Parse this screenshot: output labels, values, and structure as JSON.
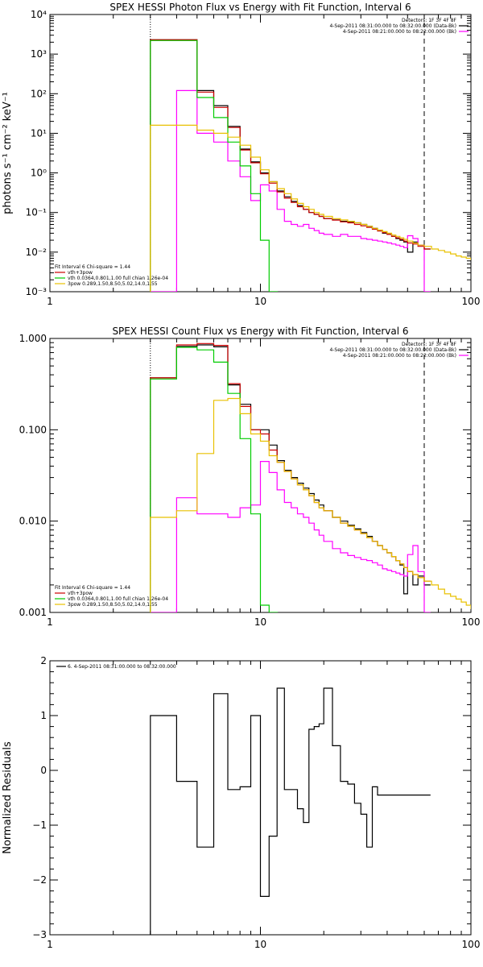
{
  "chart_data": [
    {
      "type": "line",
      "title": "SPEX HESSI Photon Flux vs Energy with Fit Function, Interval 6",
      "xlabel": "",
      "ylabel": "photons s⁻¹ cm⁻² keV⁻¹",
      "x_scale": "log",
      "y_scale": "log",
      "xlim": [
        1,
        100
      ],
      "ylim": [
        0.001,
        10000
      ],
      "x_ticks": [
        {
          "v": 1,
          "label": "1"
        },
        {
          "v": 10,
          "label": "10"
        },
        {
          "v": 100,
          "label": "100"
        }
      ],
      "y_ticks": [
        {
          "v": 0.001,
          "label": "10⁻³"
        },
        {
          "v": 0.01,
          "label": "10⁻²"
        },
        {
          "v": 0.1,
          "label": "10⁻¹"
        },
        {
          "v": 1,
          "label": "10⁰"
        },
        {
          "v": 10,
          "label": "10¹"
        },
        {
          "v": 100,
          "label": "10²"
        },
        {
          "v": 1000,
          "label": "10³"
        },
        {
          "v": 10000,
          "label": "10⁴"
        }
      ],
      "vlines": [
        {
          "x": 3,
          "style": "dotted"
        },
        {
          "x": 60,
          "style": "dashed"
        }
      ],
      "legend_top": [
        "Detectors: 1F 3F 4F 8F",
        "4-Sep-2011 08:31:00.000 to 08:32:00.000 (Data-Bk)",
        "4-Sep-2011 08:21:00.000 to 08:22:00.000 (Bk)"
      ],
      "legend_top_colors": [
        "",
        "#000000",
        "#ff00ff"
      ],
      "legend_bottom": [
        "Fit Interval 6   Chi-square = 1.44",
        "vth+3pow",
        "vth 0.0364,0.801,1.00  full chian 1.26e-04",
        "3pow 0.289,1.50,8.50,5.02,14.0,1.55"
      ],
      "legend_bottom_colors": [
        "",
        "#cc0000",
        "#00cc00",
        "#e8c000"
      ],
      "series": [
        {
          "name": "data-bk",
          "color": "#000000",
          "x": [
            3,
            4,
            5,
            6,
            7,
            8,
            9,
            10,
            11,
            12,
            13,
            14,
            15,
            16,
            17,
            18,
            19,
            20,
            22,
            24,
            26,
            28,
            30,
            32,
            34,
            36,
            38,
            40,
            42,
            44,
            46,
            48,
            50,
            53,
            56,
            60
          ],
          "y": [
            2300,
            2300,
            120,
            50,
            15,
            4,
            1.9,
            1,
            0.6,
            0.35,
            0.25,
            0.19,
            0.15,
            0.12,
            0.1,
            0.09,
            0.08,
            0.07,
            0.065,
            0.06,
            0.058,
            0.055,
            0.05,
            0.045,
            0.04,
            0.035,
            0.03,
            0.028,
            0.025,
            0.022,
            0.02,
            0.018,
            0.01,
            0.018,
            0.015,
            0.012
          ]
        },
        {
          "name": "background",
          "color": "#ff00ff",
          "x": [
            3,
            4,
            5,
            6,
            7,
            8,
            9,
            10,
            11,
            12,
            13,
            14,
            15,
            16,
            17,
            18,
            19,
            20,
            22,
            24,
            26,
            28,
            30,
            32,
            34,
            36,
            38,
            40,
            42,
            44,
            46,
            48,
            50,
            53,
            56,
            60
          ],
          "y": [
            0.001,
            120,
            10,
            6,
            2,
            0.8,
            0.2,
            0.5,
            0.35,
            0.12,
            0.06,
            0.05,
            0.045,
            0.05,
            0.04,
            0.035,
            0.03,
            0.028,
            0.025,
            0.028,
            0.025,
            0.025,
            0.022,
            0.021,
            0.02,
            0.019,
            0.018,
            0.017,
            0.016,
            0.015,
            0.014,
            0.013,
            0.026,
            0.022,
            0.015,
            0.001
          ]
        },
        {
          "name": "total fit",
          "color": "#cc0000",
          "x": [
            3,
            4,
            5,
            6,
            7,
            8,
            9,
            10,
            11,
            12,
            13,
            14,
            15,
            16,
            17,
            18,
            19,
            20,
            22,
            24,
            26,
            28,
            30,
            32,
            34,
            36,
            38,
            40,
            42,
            44,
            46,
            48,
            50,
            53,
            56,
            60
          ],
          "y": [
            2300,
            2300,
            110,
            45,
            14,
            3.8,
            1.8,
            0.95,
            0.55,
            0.33,
            0.23,
            0.18,
            0.14,
            0.12,
            0.1,
            0.09,
            0.08,
            0.07,
            0.064,
            0.058,
            0.055,
            0.05,
            0.046,
            0.042,
            0.038,
            0.034,
            0.031,
            0.028,
            0.025,
            0.023,
            0.021,
            0.019,
            0.017,
            0.016,
            0.014,
            0.012
          ]
        },
        {
          "name": "vth",
          "color": "#00cc00",
          "x": [
            3,
            4,
            5,
            6,
            7,
            8,
            9,
            10,
            11
          ],
          "y": [
            2200,
            2200,
            80,
            25,
            6,
            1.5,
            0.3,
            0.02,
            0.001
          ]
        },
        {
          "name": "3pow",
          "color": "#e8c000",
          "x": [
            3,
            4,
            5,
            6,
            7,
            8,
            9,
            10,
            11,
            12,
            13,
            14,
            15,
            16,
            17,
            18,
            19,
            20,
            22,
            24,
            26,
            28,
            30,
            32,
            34,
            36,
            38,
            40,
            42,
            44,
            46,
            48,
            50,
            53,
            56,
            60,
            65,
            70,
            75,
            80,
            85,
            90,
            95,
            100
          ],
          "y": [
            16,
            16,
            12,
            10,
            8,
            5,
            2.5,
            1.2,
            0.6,
            0.4,
            0.3,
            0.22,
            0.17,
            0.14,
            0.12,
            0.1,
            0.09,
            0.08,
            0.07,
            0.065,
            0.06,
            0.055,
            0.05,
            0.045,
            0.04,
            0.036,
            0.033,
            0.03,
            0.027,
            0.025,
            0.023,
            0.021,
            0.019,
            0.017,
            0.015,
            0.014,
            0.012,
            0.011,
            0.01,
            0.009,
            0.008,
            0.0075,
            0.007,
            0.0065
          ]
        }
      ]
    },
    {
      "type": "line",
      "title": "SPEX HESSI Count Flux vs Energy with Fit Function, Interval 6",
      "xlabel": "",
      "ylabel": "",
      "x_scale": "log",
      "y_scale": "log",
      "xlim": [
        1,
        100
      ],
      "ylim": [
        0.001,
        1
      ],
      "x_ticks": [
        {
          "v": 1,
          "label": "1"
        },
        {
          "v": 10,
          "label": "10"
        },
        {
          "v": 100,
          "label": "100"
        }
      ],
      "y_ticks": [
        {
          "v": 0.001,
          "label": "0.001"
        },
        {
          "v": 0.01,
          "label": "0.010"
        },
        {
          "v": 0.1,
          "label": "0.100"
        },
        {
          "v": 1,
          "label": "1.000"
        }
      ],
      "vlines": [
        {
          "x": 3,
          "style": "dotted"
        },
        {
          "x": 60,
          "style": "dashed"
        }
      ],
      "legend_top": [
        "Detectors: 1F 3F 4F 8F",
        "4-Sep-2011 08:31:00.000 to 08:32:00.000 (Data-Bk)",
        "4-Sep-2011 08:21:00.000 to 08:22:00.000 (Bk)"
      ],
      "legend_top_colors": [
        "",
        "#000000",
        "#ff00ff"
      ],
      "legend_bottom": [
        "Fit Interval 6   Chi-square = 1.44",
        "vth+3pow",
        "vth 0.0364,0.801,1.00  full chian 1.26e-04",
        "3pow 0.289,1.50,8.50,5.02,14.0,1.55"
      ],
      "legend_bottom_colors": [
        "",
        "#cc0000",
        "#00cc00",
        "#e8c000"
      ],
      "series": [
        {
          "name": "data-bk",
          "color": "#000000",
          "x": [
            3,
            4,
            5,
            6,
            7,
            8,
            9,
            10,
            11,
            12,
            13,
            14,
            15,
            16,
            17,
            18,
            19,
            20,
            22,
            24,
            26,
            28,
            30,
            32,
            34,
            36,
            38,
            40,
            42,
            44,
            46,
            48,
            50,
            53,
            56,
            60
          ],
          "y": [
            0.37,
            0.82,
            0.85,
            0.81,
            0.31,
            0.19,
            0.1,
            0.1,
            0.068,
            0.046,
            0.036,
            0.03,
            0.026,
            0.023,
            0.02,
            0.017,
            0.015,
            0.013,
            0.011,
            0.01,
            0.009,
            0.0082,
            0.0075,
            0.0068,
            0.006,
            0.0054,
            0.0049,
            0.0045,
            0.0041,
            0.0037,
            0.0033,
            0.0016,
            0.0028,
            0.002,
            0.0025,
            0.002
          ]
        },
        {
          "name": "background",
          "color": "#ff00ff",
          "x": [
            3,
            4,
            5,
            6,
            7,
            8,
            9,
            10,
            11,
            12,
            13,
            14,
            15,
            16,
            17,
            18,
            19,
            20,
            22,
            24,
            26,
            28,
            30,
            32,
            34,
            36,
            38,
            40,
            42,
            44,
            46,
            48,
            50,
            53,
            56,
            60
          ],
          "y": [
            0.001,
            0.018,
            0.012,
            0.012,
            0.011,
            0.014,
            0.015,
            0.045,
            0.034,
            0.022,
            0.016,
            0.014,
            0.012,
            0.011,
            0.0095,
            0.008,
            0.007,
            0.006,
            0.005,
            0.0045,
            0.0042,
            0.004,
            0.0038,
            0.0037,
            0.0035,
            0.0033,
            0.003,
            0.0029,
            0.0028,
            0.0027,
            0.0026,
            0.0025,
            0.0043,
            0.0054,
            0.0028,
            0.001
          ]
        },
        {
          "name": "total fit",
          "color": "#cc0000",
          "x": [
            3,
            4,
            5,
            6,
            7,
            8,
            9,
            10,
            11,
            12,
            13,
            14,
            15,
            16,
            17,
            18,
            19,
            20,
            22,
            24,
            26,
            28,
            30,
            32,
            34,
            36,
            38,
            40,
            42,
            44,
            46,
            48,
            50,
            53,
            56,
            60
          ],
          "y": [
            0.37,
            0.85,
            0.88,
            0.84,
            0.32,
            0.18,
            0.1,
            0.09,
            0.06,
            0.044,
            0.035,
            0.029,
            0.025,
            0.022,
            0.019,
            0.016,
            0.014,
            0.013,
            0.011,
            0.0095,
            0.0088,
            0.008,
            0.0073,
            0.0066,
            0.006,
            0.0054,
            0.0049,
            0.0045,
            0.0041,
            0.0037,
            0.0034,
            0.0031,
            0.0028,
            0.0026,
            0.0024,
            0.0022
          ]
        },
        {
          "name": "vth",
          "color": "#00cc00",
          "x": [
            3,
            4,
            5,
            6,
            7,
            8,
            9,
            10,
            11
          ],
          "y": [
            0.36,
            0.8,
            0.75,
            0.55,
            0.25,
            0.08,
            0.012,
            0.0012,
            0.001
          ]
        },
        {
          "name": "3pow",
          "color": "#e8c000",
          "x": [
            3,
            4,
            5,
            6,
            7,
            8,
            9,
            10,
            11,
            12,
            13,
            14,
            15,
            16,
            17,
            18,
            19,
            20,
            22,
            24,
            26,
            28,
            30,
            32,
            34,
            36,
            38,
            40,
            42,
            44,
            46,
            48,
            50,
            53,
            56,
            60,
            65,
            70,
            75,
            80,
            85,
            90,
            95,
            100
          ],
          "y": [
            0.011,
            0.013,
            0.055,
            0.21,
            0.22,
            0.15,
            0.09,
            0.075,
            0.052,
            0.044,
            0.035,
            0.029,
            0.025,
            0.022,
            0.019,
            0.016,
            0.014,
            0.013,
            0.011,
            0.0095,
            0.0088,
            0.008,
            0.0073,
            0.0066,
            0.006,
            0.0054,
            0.0049,
            0.0045,
            0.0041,
            0.0037,
            0.0034,
            0.0031,
            0.0028,
            0.0026,
            0.0024,
            0.0022,
            0.002,
            0.0018,
            0.0016,
            0.0015,
            0.0014,
            0.0013,
            0.0012,
            0.0011
          ]
        }
      ]
    },
    {
      "type": "line",
      "title": "",
      "xlabel": "",
      "ylabel": "Normalized Residuals",
      "x_scale": "log",
      "y_scale": "linear",
      "xlim": [
        1,
        100
      ],
      "ylim": [
        -3,
        2
      ],
      "x_ticks": [
        {
          "v": 1,
          "label": "1"
        },
        {
          "v": 10,
          "label": "10"
        },
        {
          "v": 100,
          "label": "100"
        }
      ],
      "y_ticks": [
        {
          "v": -3,
          "label": "−3"
        },
        {
          "v": -2,
          "label": "−2"
        },
        {
          "v": -1,
          "label": "−1"
        },
        {
          "v": 0,
          "label": "0"
        },
        {
          "v": 1,
          "label": "1"
        },
        {
          "v": 2,
          "label": "2"
        }
      ],
      "vlines": [],
      "legend_top": [
        "6.  4-Sep-2011 08:31:00.000 to 08:32:00.000"
      ],
      "legend_top_colors": [
        "#000000"
      ],
      "legend_bottom": [],
      "legend_bottom_colors": [],
      "series": [
        {
          "name": "residuals",
          "color": "#000000",
          "x": [
            3,
            4,
            5,
            6,
            7,
            8,
            9,
            10,
            11,
            12,
            13,
            14,
            15,
            16,
            17,
            18,
            19,
            20,
            22,
            24,
            26,
            28,
            30,
            32,
            34,
            36,
            38,
            40,
            42,
            44,
            46,
            48,
            50,
            53,
            56,
            60
          ],
          "y": [
            1,
            -0.2,
            -1.4,
            1.4,
            -0.35,
            -0.3,
            1,
            -2.3,
            -1.2,
            1.5,
            -0.35,
            -0.35,
            -0.7,
            -0.95,
            0.75,
            0.8,
            0.85,
            1.5,
            0.45,
            -0.2,
            -0.25,
            -0.6,
            -0.8,
            -1.4,
            -0.3,
            -0.45,
            -0.45,
            -0.45,
            -0.45,
            -0.45,
            -0.45,
            -0.45,
            -0.45,
            -0.45,
            -0.45,
            -0.45
          ]
        }
      ]
    }
  ]
}
